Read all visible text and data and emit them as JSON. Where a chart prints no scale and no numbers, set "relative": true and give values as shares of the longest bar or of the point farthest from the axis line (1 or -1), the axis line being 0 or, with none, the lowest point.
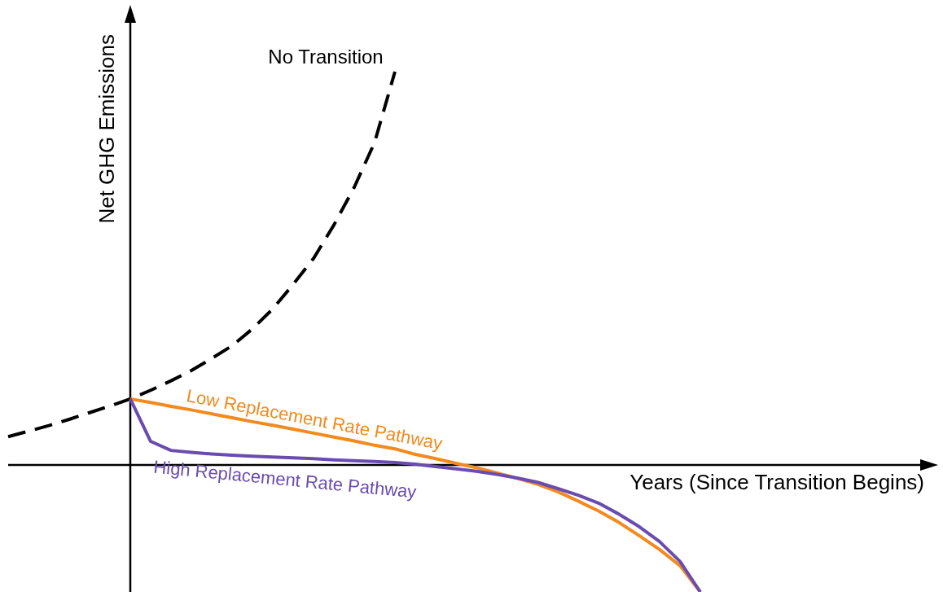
{
  "chart_data": {
    "type": "line",
    "relative": true,
    "xlabel": "Years (Since Transition Begins)",
    "ylabel": "Net GHG Emissions",
    "categories": [
      null,
      null,
      null,
      null,
      null,
      null,
      null,
      null,
      null,
      null,
      null,
      null,
      null,
      null,
      null,
      null,
      null,
      null,
      null,
      null,
      null,
      null,
      null,
      null,
      null,
      null,
      null,
      null,
      null,
      null,
      null,
      null,
      null,
      null,
      null,
      null,
      null,
      null,
      null,
      null,
      null,
      null,
      null,
      null,
      null,
      null
    ],
    "series": [
      {
        "name": "No Transition",
        "color": "#000000",
        "line_style": "dashed",
        "values": [
          0.072,
          0.086,
          0.1,
          0.116,
          0.133,
          0.15,
          0.168,
          0.19,
          0.214,
          0.24,
          0.271,
          0.303,
          0.346,
          0.397,
          0.459,
          0.525,
          0.61,
          0.706,
          0.82,
          1.0,
          null,
          null,
          null,
          null,
          null,
          null,
          null,
          null,
          null,
          null,
          null,
          null,
          null,
          null,
          null,
          null,
          null,
          null,
          null,
          null,
          null,
          null,
          null,
          null,
          null,
          null
        ]
      },
      {
        "name": "Low Replacement Rate Pathway",
        "color": "#f28a1e",
        "line_style": "solid",
        "values": [
          null,
          null,
          null,
          null,
          null,
          null,
          0.168,
          0.159,
          0.149,
          0.14,
          0.13,
          0.12,
          0.11,
          0.101,
          0.091,
          0.081,
          0.071,
          0.061,
          0.05,
          0.041,
          0.027,
          0.016,
          0.004,
          -0.007,
          -0.02,
          -0.034,
          -0.049,
          -0.068,
          -0.092,
          -0.117,
          -0.146,
          -0.18,
          -0.215,
          -0.256,
          -0.323,
          null,
          null,
          null,
          null,
          null,
          null,
          null,
          null,
          null,
          null,
          null
        ]
      },
      {
        "name": "High Replacement Rate Pathway",
        "color": "#6a4cb0",
        "line_style": "solid",
        "values": [
          null,
          null,
          null,
          null,
          null,
          null,
          0.168,
          0.06,
          0.037,
          0.032,
          0.028,
          0.025,
          0.022,
          0.02,
          0.018,
          0.016,
          0.013,
          0.011,
          0.009,
          0.006,
          0.002,
          -0.004,
          -0.01,
          -0.016,
          -0.024,
          -0.033,
          -0.044,
          -0.06,
          -0.077,
          -0.097,
          -0.125,
          -0.157,
          -0.195,
          -0.245,
          -0.323,
          null,
          null,
          null,
          null,
          null,
          null,
          null,
          null,
          null,
          null,
          null
        ]
      }
    ]
  }
}
